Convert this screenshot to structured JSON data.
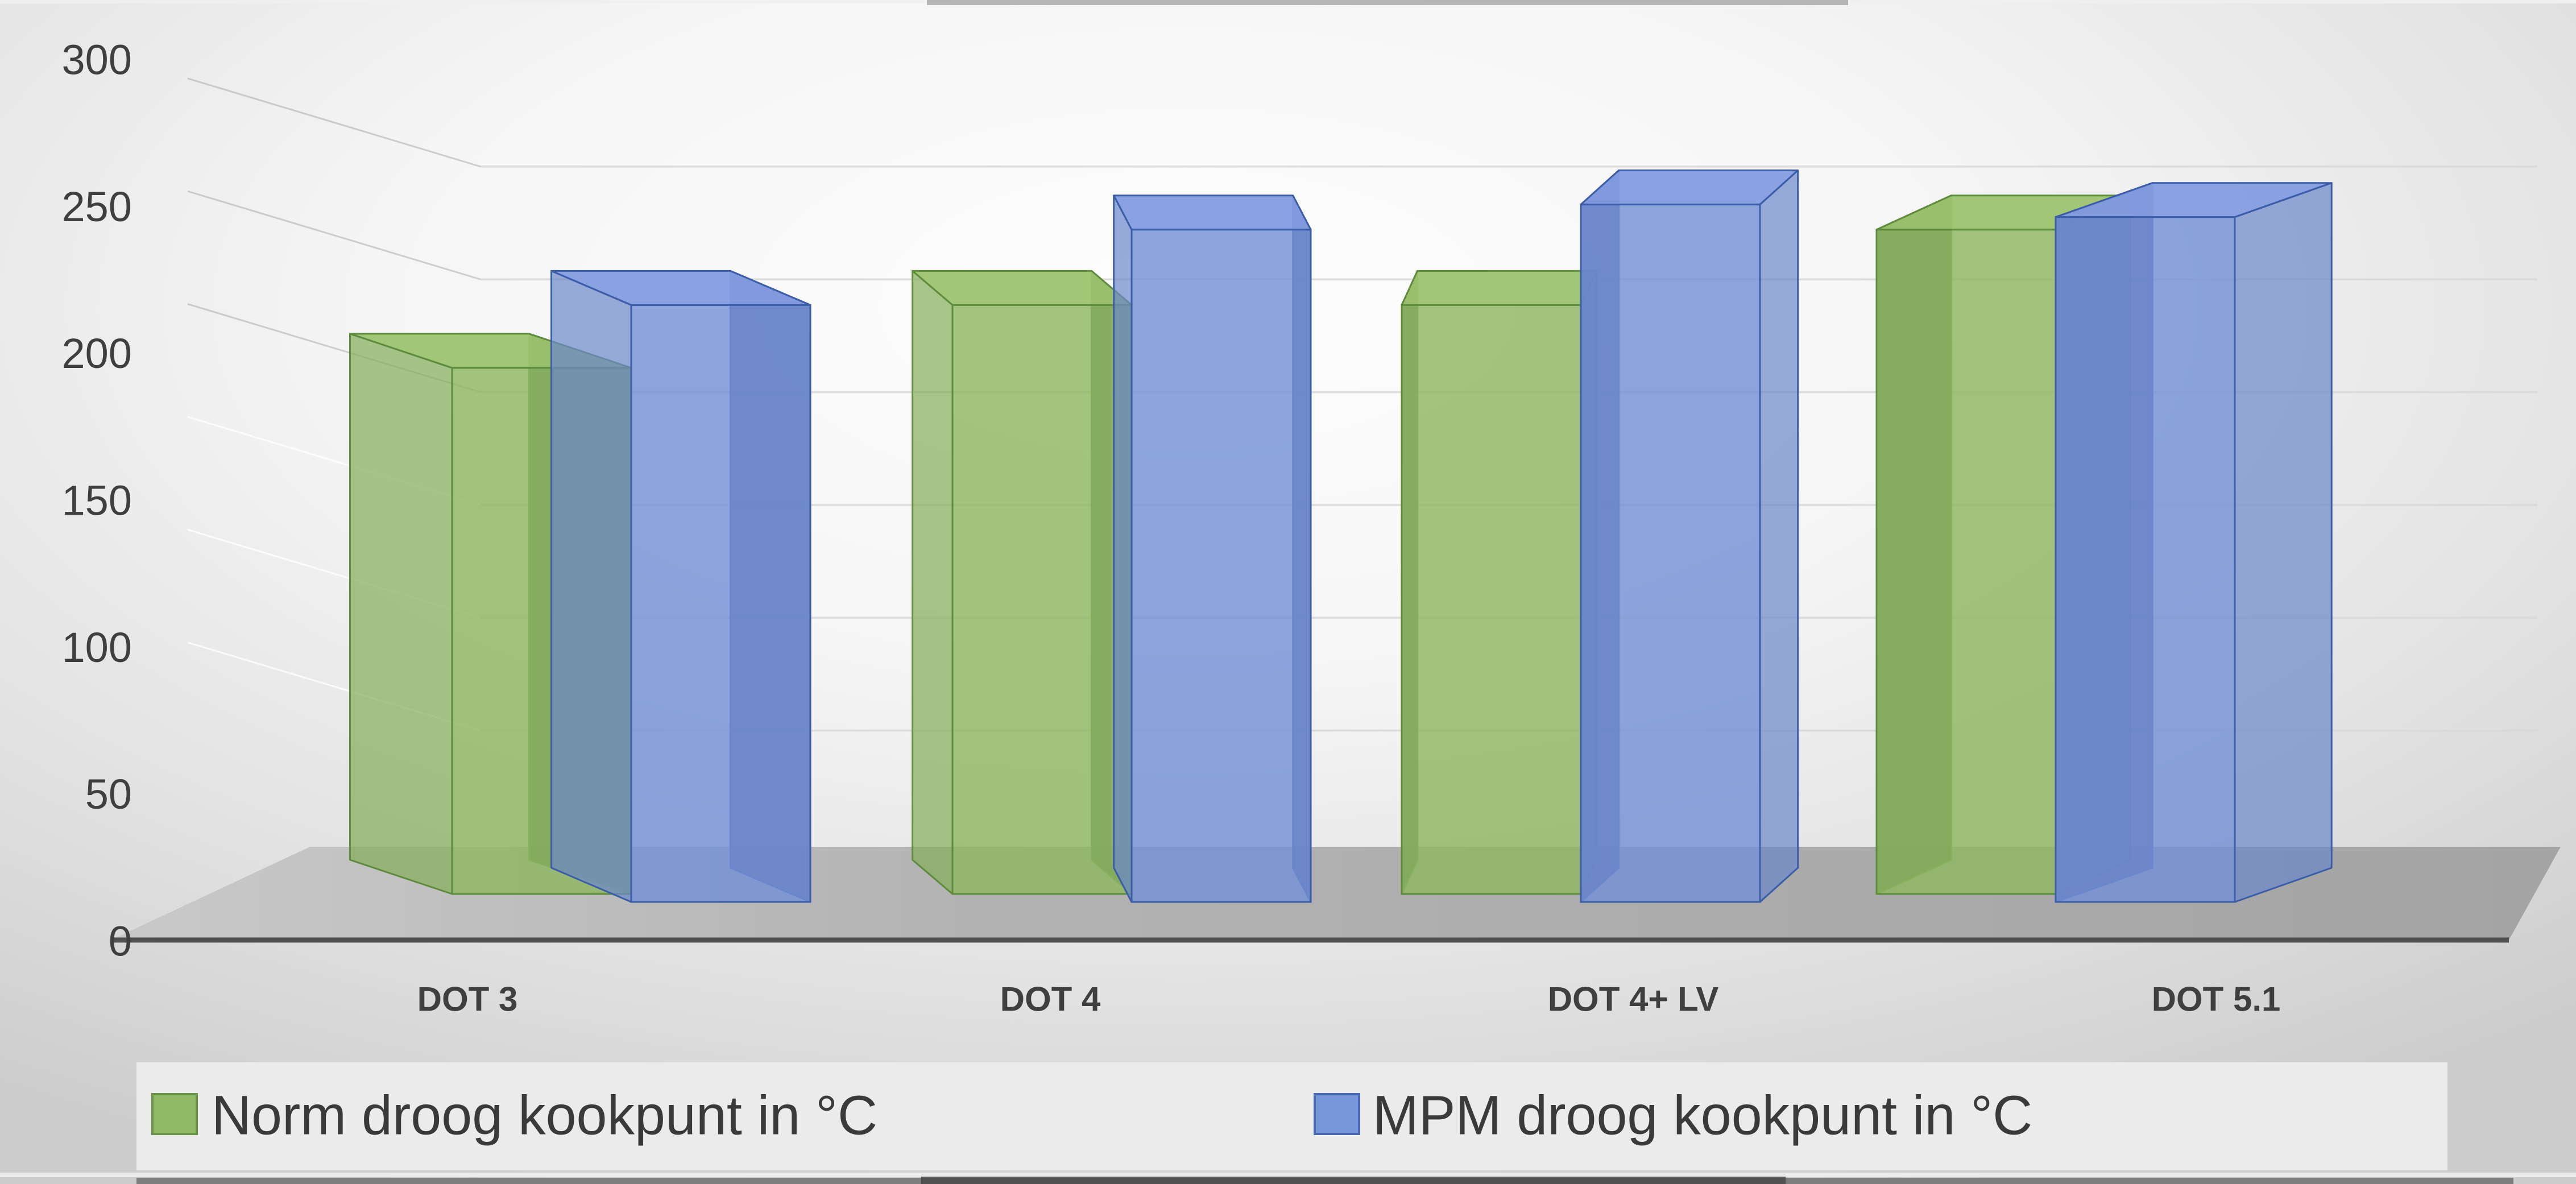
{
  "chart_data": {
    "type": "bar",
    "variant": "3d-clustered-column",
    "title": "",
    "xlabel": "",
    "ylabel": "",
    "categories": [
      "DOT 3",
      "DOT 4",
      "DOT 4+ LV",
      "DOT 5.1"
    ],
    "series": [
      {
        "name": "Norm droog kookpunt in °C",
        "values": [
          205,
          230,
          230,
          260
        ],
        "color": "#8DB761",
        "top_color": "#9CC36F",
        "side_color": "#83AE59",
        "dark_color": "#4E673C",
        "edge_color": "#5E8C3D"
      },
      {
        "name": "MPM droog kookpunt in °C",
        "values": [
          230,
          260,
          270,
          265
        ],
        "color": "#7490D6",
        "top_color": "#849DE0",
        "side_color": "#6B87CC",
        "dark_color": "#3F5384",
        "edge_color": "#3C5DA8"
      }
    ],
    "ylim": [
      0,
      300
    ],
    "ytick_step": 50,
    "yticks": [
      0,
      50,
      100,
      150,
      200,
      250,
      300
    ],
    "ytick_labels": [
      "0",
      "50",
      "100",
      "150",
      "200",
      "250",
      "300"
    ],
    "grid": true,
    "legend_position": "bottom"
  },
  "legend": {
    "items": [
      {
        "label": "Norm droog kookpunt in °C",
        "swatch_color": "#8FB965",
        "swatch_border": "#6B9448"
      },
      {
        "label": "MPM droog kookpunt in °C",
        "swatch_color": "#7897D8",
        "swatch_border": "#4A68B4"
      }
    ],
    "background": "#EBEBEB",
    "text_color": "#3A3A3A"
  },
  "axis_style": {
    "label_color": "#3F3F3F",
    "axis_line_color": "#4F4F4F",
    "gridline_color": "#D9D9D9",
    "floor_color": "#ACACAC",
    "wall_color": "#F7F7F7"
  }
}
